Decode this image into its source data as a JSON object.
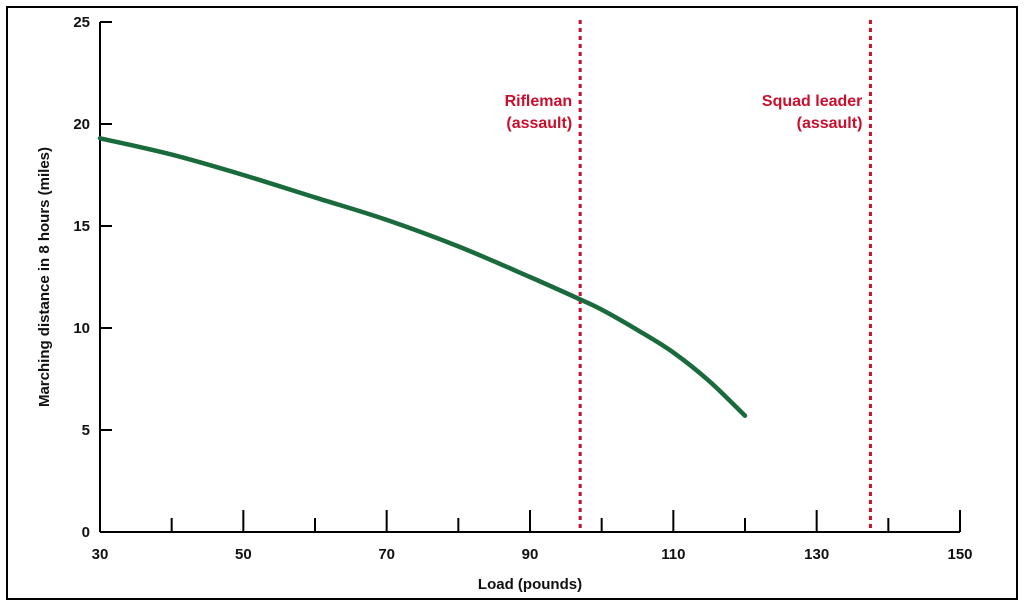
{
  "chart_data": {
    "type": "line",
    "title": "",
    "xlabel": "Load (pounds)",
    "ylabel": "Marching distance in 8 hours (miles)",
    "xlim": [
      30,
      150
    ],
    "ylim": [
      0,
      25
    ],
    "x_major_ticks": [
      30,
      50,
      70,
      90,
      110,
      130,
      150
    ],
    "x_minor_ticks": [
      40,
      60,
      80,
      100,
      120,
      140
    ],
    "y_ticks": [
      0,
      5,
      10,
      15,
      20,
      25
    ],
    "grid": false,
    "series": [
      {
        "name": "",
        "color": "#1a6b3c",
        "x": [
          30,
          40,
          50,
          60,
          70,
          80,
          90,
          97,
          100,
          105,
          110,
          115,
          120
        ],
        "y": [
          19.3,
          18.5,
          17.5,
          16.4,
          15.3,
          14.0,
          12.5,
          11.4,
          10.9,
          9.9,
          8.8,
          7.4,
          5.7
        ]
      }
    ],
    "annotations": [
      {
        "x": 97,
        "lines": [
          "Rifleman",
          "(assault)"
        ],
        "align": "end",
        "color": "#c8102e",
        "style": "dotted"
      },
      {
        "x": 137.5,
        "lines": [
          "Squad leader",
          "(assault)"
        ],
        "align": "end",
        "color": "#c8102e",
        "style": "dotted"
      }
    ]
  }
}
